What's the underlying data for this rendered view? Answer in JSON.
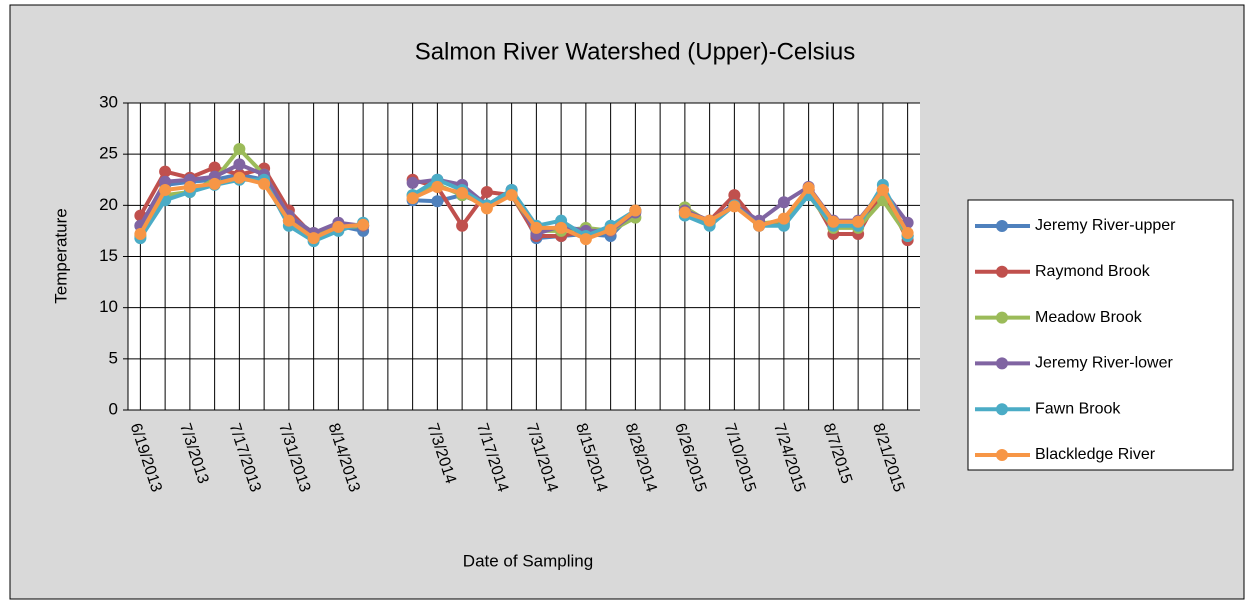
{
  "chart_data": {
    "type": "line",
    "title": "Salmon River Watershed (Upper)-Celsius",
    "x_label": "Date of Sampling",
    "y_label": "Temperature",
    "categories": [
      "6/19/2013",
      null,
      "7/3/2013",
      null,
      "7/17/2013",
      null,
      "7/31/2013",
      null,
      "8/14/2013",
      null,
      null,
      null,
      "7/3/2014",
      null,
      "7/17/2014",
      null,
      "7/31/2014",
      null,
      "8/15/2014",
      null,
      "8/28/2014",
      null,
      "6/26/2015",
      null,
      "7/10/2015",
      null,
      "7/24/2015",
      null,
      "8/7/2015",
      null,
      "8/21/2015",
      null
    ],
    "series": [
      {
        "name": "Jeremy River-upper",
        "color": "#4f81bd",
        "values": [
          18.0,
          22.0,
          22.3,
          22.5,
          23.0,
          22.5,
          18.5,
          17.0,
          18.0,
          17.5,
          null,
          20.5,
          20.4,
          21.0,
          20.0,
          21.5,
          16.8,
          17.0,
          17.2,
          17.0,
          19.5,
          null,
          19.5,
          18.2,
          20.2,
          18.0,
          18.2,
          21.5,
          18.0,
          18.0,
          21.0,
          17.0
        ]
      },
      {
        "name": "Raymond Brook",
        "color": "#c0504d",
        "values": [
          19.0,
          23.3,
          22.7,
          23.7,
          23.0,
          23.6,
          19.5,
          17.0,
          18.0,
          18.0,
          null,
          22.5,
          21.8,
          18.0,
          21.3,
          21.0,
          17.0,
          17.0,
          17.5,
          17.5,
          19.5,
          null,
          19.5,
          18.5,
          21.0,
          18.0,
          18.5,
          21.5,
          17.2,
          17.2,
          21.5,
          16.6
        ]
      },
      {
        "name": "Meadow Brook",
        "color": "#9bbb59",
        "values": [
          17.0,
          21.0,
          21.3,
          22.5,
          25.5,
          23.0,
          19.0,
          17.3,
          17.8,
          18.0,
          null,
          21.0,
          22.0,
          21.0,
          20.0,
          21.0,
          17.5,
          17.5,
          17.8,
          17.5,
          18.8,
          null,
          19.8,
          18.3,
          20.0,
          18.2,
          18.5,
          21.0,
          17.8,
          17.8,
          20.5,
          17.0
        ]
      },
      {
        "name": "Jeremy River-lower",
        "color": "#8064a2",
        "values": [
          18.0,
          22.3,
          22.5,
          22.8,
          24.0,
          23.0,
          19.0,
          17.3,
          18.3,
          18.0,
          null,
          22.2,
          22.5,
          22.0,
          20.0,
          21.5,
          17.2,
          18.0,
          17.5,
          17.5,
          19.3,
          null,
          19.5,
          18.5,
          20.0,
          18.5,
          20.3,
          21.8,
          18.5,
          18.5,
          21.5,
          18.3
        ]
      },
      {
        "name": "Fawn Brook",
        "color": "#4bacc6",
        "values": [
          16.8,
          20.5,
          21.3,
          22.0,
          22.5,
          22.5,
          18.0,
          16.5,
          17.5,
          18.3,
          null,
          21.0,
          22.5,
          21.5,
          20.0,
          21.5,
          18.0,
          18.5,
          17.0,
          18.0,
          19.5,
          null,
          19.0,
          18.0,
          20.0,
          18.0,
          18.0,
          21.0,
          18.0,
          18.0,
          22.0,
          17.0
        ]
      },
      {
        "name": "Blackledge River",
        "color": "#f79646",
        "values": [
          17.2,
          21.5,
          21.8,
          22.1,
          22.7,
          22.1,
          18.5,
          16.8,
          17.9,
          18.1,
          null,
          20.7,
          21.8,
          21.2,
          19.7,
          21.0,
          17.8,
          17.8,
          16.7,
          17.6,
          19.5,
          null,
          19.3,
          18.5,
          19.9,
          18.0,
          18.7,
          21.7,
          18.4,
          18.4,
          21.5,
          17.3
        ]
      }
    ],
    "ylim": [
      0,
      30
    ],
    "yticks": [
      0,
      5,
      10,
      15,
      20,
      25,
      30
    ],
    "grid": true,
    "legend": "right"
  }
}
